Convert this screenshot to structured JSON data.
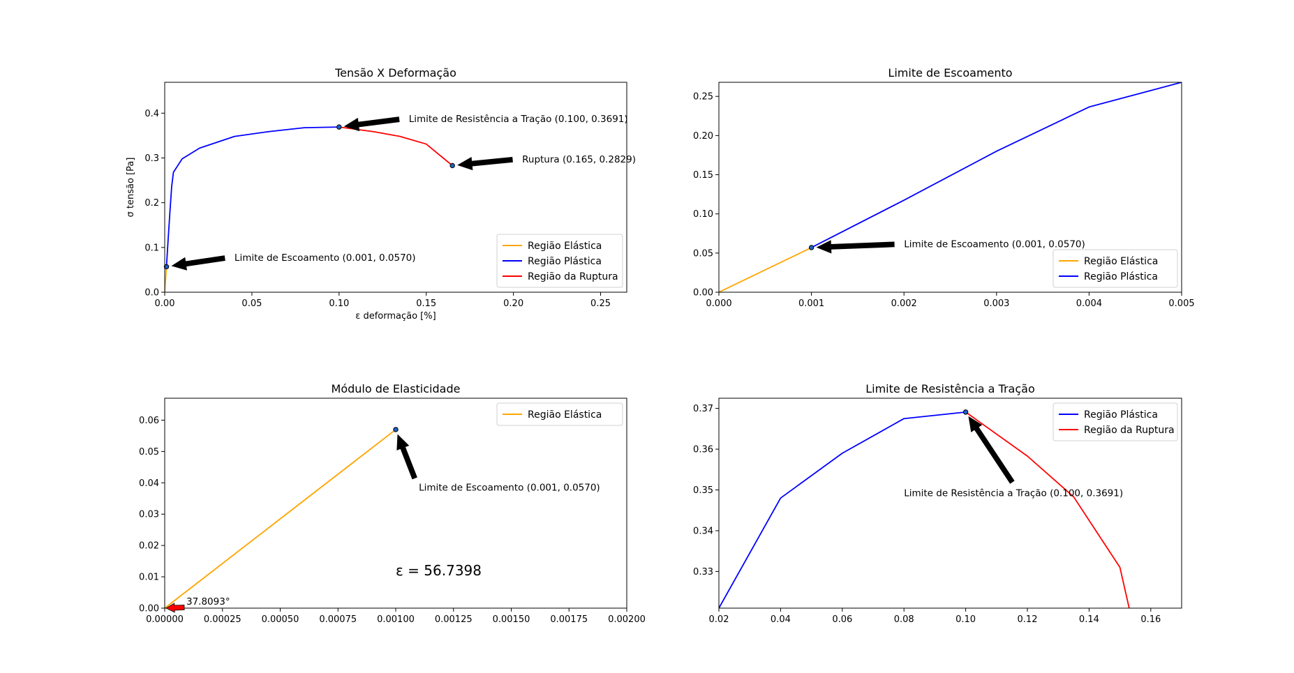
{
  "colors": {
    "elastic": "#ffa500",
    "plastic": "#0000ff",
    "rupture": "#ff0000",
    "arrow": "#000000",
    "angle_arrow": "#ff0000"
  },
  "chart_data": [
    {
      "type": "line",
      "title": "Tensão X Deformação",
      "xlabel": "ε deformação [%]",
      "ylabel": "σ tensão [Pa]",
      "xlim": [
        0,
        0.265
      ],
      "ylim": [
        0,
        0.469
      ],
      "xticks": [
        0,
        0.05,
        0.1,
        0.15,
        0.2,
        0.25
      ],
      "xtick_labels": [
        "0.00",
        "0.05",
        "0.10",
        "0.15",
        "0.20",
        "0.25"
      ],
      "yticks": [
        0,
        0.1,
        0.2,
        0.3,
        0.4
      ],
      "ytick_labels": [
        "0.0",
        "0.1",
        "0.2",
        "0.3",
        "0.4"
      ],
      "legend": "bottom-right",
      "series": [
        {
          "name": "Região Elástica",
          "color": "elastic",
          "points": [
            [
              0,
              0
            ],
            [
              0.001,
              0.057
            ]
          ]
        },
        {
          "name": "Região Plástica",
          "color": "plastic",
          "points": [
            [
              0.001,
              0.057
            ],
            [
              0.002,
              0.12
            ],
            [
              0.003,
              0.18
            ],
            [
              0.004,
              0.2365
            ],
            [
              0.005,
              0.268
            ],
            [
              0.01,
              0.298
            ],
            [
              0.02,
              0.322
            ],
            [
              0.04,
              0.348
            ],
            [
              0.06,
              0.359
            ],
            [
              0.08,
              0.3675
            ],
            [
              0.1,
              0.3691
            ]
          ]
        },
        {
          "name": "Região da Ruptura",
          "color": "rupture",
          "points": [
            [
              0.1,
              0.3691
            ],
            [
              0.12,
              0.3585
            ],
            [
              0.135,
              0.348
            ],
            [
              0.15,
              0.331
            ],
            [
              0.165,
              0.2829
            ]
          ]
        }
      ],
      "markers": [
        [
          0.001,
          0.057
        ],
        [
          0.1,
          0.3691
        ],
        [
          0.165,
          0.2829
        ]
      ],
      "annotations": [
        {
          "text": "Limite de Escoamento (0.001, 0.0570)",
          "point": [
            0.001,
            0.057
          ],
          "text_at": [
            0.04,
            0.07
          ]
        },
        {
          "text": "Limite de Resistência a Tração (0.100, 0.3691)",
          "point": [
            0.1,
            0.3691
          ],
          "text_at": [
            0.14,
            0.38
          ]
        },
        {
          "text": "Ruptura (0.165, 0.2829)",
          "point": [
            0.165,
            0.2829
          ],
          "text_at": [
            0.205,
            0.29
          ]
        }
      ]
    },
    {
      "type": "line",
      "title": "Limite de Escoamento",
      "xlabel": "",
      "ylabel": "",
      "xlim": [
        0,
        0.005
      ],
      "ylim": [
        0,
        0.268
      ],
      "xticks": [
        0,
        0.001,
        0.002,
        0.003,
        0.004,
        0.005
      ],
      "xtick_labels": [
        "0.000",
        "0.001",
        "0.002",
        "0.003",
        "0.004",
        "0.005"
      ],
      "yticks": [
        0,
        0.05,
        0.1,
        0.15,
        0.2,
        0.25
      ],
      "ytick_labels": [
        "0.00",
        "0.05",
        "0.10",
        "0.15",
        "0.20",
        "0.25"
      ],
      "legend": "bottom-right",
      "series": [
        {
          "name": "Região Elástica",
          "color": "elastic",
          "points": [
            [
              0,
              0
            ],
            [
              0.001,
              0.057
            ]
          ]
        },
        {
          "name": "Região Plástica",
          "color": "plastic",
          "points": [
            [
              0.001,
              0.057
            ],
            [
              0.002,
              0.1175
            ],
            [
              0.003,
              0.18
            ],
            [
              0.004,
              0.2365
            ],
            [
              0.005,
              0.268
            ]
          ]
        }
      ],
      "markers": [
        [
          0.001,
          0.057
        ]
      ],
      "annotations": [
        {
          "text": "Limite de Escoamento (0.001, 0.0570)",
          "point": [
            0.001,
            0.057
          ],
          "text_at": [
            0.002,
            0.0575
          ]
        }
      ]
    },
    {
      "type": "line",
      "title": "Módulo de Elasticidade",
      "xlabel": "",
      "ylabel": "",
      "xlim": [
        0,
        0.002
      ],
      "ylim": [
        0,
        0.067
      ],
      "xticks": [
        0,
        0.00025,
        0.0005,
        0.00075,
        0.001,
        0.00125,
        0.0015,
        0.00175,
        0.002
      ],
      "xtick_labels": [
        "0.00000",
        "0.00025",
        "0.00050",
        "0.00075",
        "0.00100",
        "0.00125",
        "0.00150",
        "0.00175",
        "0.00200"
      ],
      "yticks": [
        0,
        0.01,
        0.02,
        0.03,
        0.04,
        0.05,
        0.06
      ],
      "ytick_labels": [
        "0.00",
        "0.01",
        "0.02",
        "0.03",
        "0.04",
        "0.05",
        "0.06"
      ],
      "legend": "top-right",
      "series": [
        {
          "name": "Região Elástica",
          "color": "elastic",
          "points": [
            [
              0,
              0
            ],
            [
              0.001,
              0.057
            ]
          ]
        }
      ],
      "markers": [
        [
          0.001,
          0.057
        ]
      ],
      "annotations": [
        {
          "text": "Limite de Escoamento (0.001, 0.0570)",
          "point": [
            0.001,
            0.057
          ],
          "text_at": [
            0.0011,
            0.0375
          ]
        }
      ],
      "modulus_text": "ε = 56.7398",
      "angle_text": "37.8093°"
    },
    {
      "type": "line",
      "title": "Limite de Resistência a Tração",
      "xlabel": "",
      "ylabel": "",
      "xlim": [
        0.02,
        0.17
      ],
      "ylim": [
        0.321,
        0.3725
      ],
      "xticks": [
        0.02,
        0.04,
        0.06,
        0.08,
        0.1,
        0.12,
        0.14,
        0.16
      ],
      "xtick_labels": [
        "0.02",
        "0.04",
        "0.06",
        "0.08",
        "0.10",
        "0.12",
        "0.14",
        "0.16"
      ],
      "yticks": [
        0.33,
        0.34,
        0.35,
        0.36,
        0.37
      ],
      "ytick_labels": [
        "0.33",
        "0.34",
        "0.35",
        "0.36",
        "0.37"
      ],
      "legend": "top-right",
      "series": [
        {
          "name": "Região Plástica",
          "color": "plastic",
          "points": [
            [
              0.02,
              0.321
            ],
            [
              0.04,
              0.348
            ],
            [
              0.06,
              0.359
            ],
            [
              0.08,
              0.3675
            ],
            [
              0.1,
              0.3691
            ]
          ]
        },
        {
          "name": "Região da Ruptura",
          "color": "rupture",
          "points": [
            [
              0.1,
              0.3691
            ],
            [
              0.12,
              0.3583
            ],
            [
              0.135,
              0.3483
            ],
            [
              0.15,
              0.331
            ],
            [
              0.153,
              0.321
            ]
          ]
        }
      ],
      "markers": [
        [
          0.1,
          0.3691
        ]
      ],
      "annotations": [
        {
          "text": "Limite de Resistência a Tração (0.100, 0.3691)",
          "point": [
            0.1,
            0.3691
          ],
          "text_at": [
            0.08,
            0.3485
          ]
        }
      ]
    }
  ]
}
